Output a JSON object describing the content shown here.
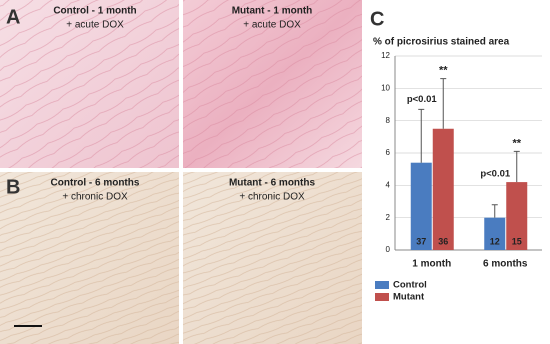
{
  "panels": [
    {
      "letter": "A",
      "images": [
        {
          "title": "Control - 1 month",
          "subtitle": "+ acute DOX"
        },
        {
          "title": "Mutant - 1 month",
          "subtitle": "+ acute DOX"
        }
      ]
    },
    {
      "letter": "B",
      "images": [
        {
          "title": "Control - 6 months",
          "subtitle": "+ chronic DOX"
        },
        {
          "title": "Mutant - 6 months",
          "subtitle": "+ chronic DOX"
        }
      ]
    }
  ],
  "chart_data": {
    "type": "bar",
    "letter": "C",
    "title": "% of picrosirius stained area",
    "categories": [
      "1 month",
      "6 months"
    ],
    "series": [
      {
        "name": "Control",
        "color": "#4a7cc0",
        "values": [
          5.4,
          2.0
        ],
        "errors": [
          3.3,
          0.8
        ],
        "n": [
          37,
          12
        ]
      },
      {
        "name": "Mutant",
        "color": "#c0504d",
        "values": [
          7.5,
          4.2
        ],
        "errors": [
          3.1,
          1.9
        ],
        "n": [
          36,
          15
        ]
      }
    ],
    "significance": [
      "p<0.01",
      "p<0.01"
    ],
    "stars": [
      "**",
      "**"
    ],
    "ylim": [
      0,
      12
    ],
    "yticks": [
      0,
      2,
      4,
      6,
      8,
      10,
      12
    ],
    "grid": true
  }
}
